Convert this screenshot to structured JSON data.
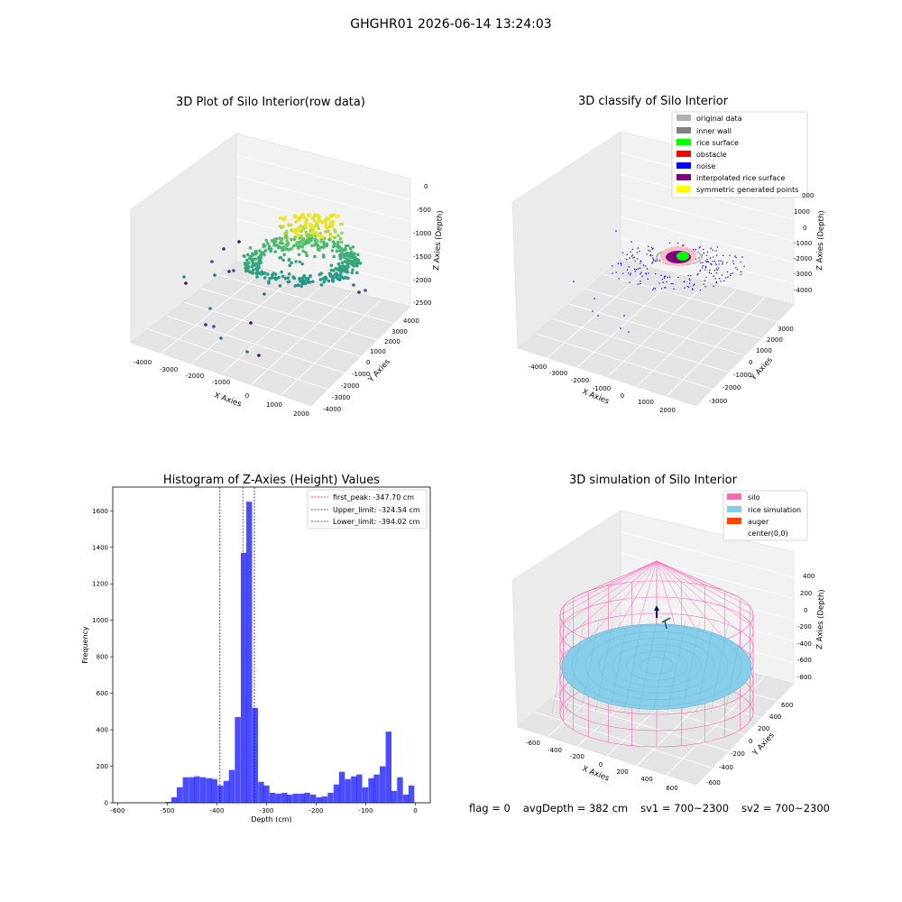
{
  "suptitle": "GHGHR01 2026-06-14 13:24:03",
  "footer": {
    "flag": "flag = 0",
    "avg": "avgDepth = 382 cm",
    "sv1": "sv1 = 700~2300",
    "sv2": "sv2 = 700~2300"
  },
  "chart_data": [
    {
      "type": "scatter",
      "title": "3D Plot of Silo Interior(row data)",
      "xlabel": "X Axies",
      "ylabel": "Y Axies",
      "zlabel": "Z Axies (Depth)",
      "x_ticks": [
        "-4000",
        "-3000",
        "-2000",
        "-1000",
        "0",
        "1000",
        "2000"
      ],
      "y_ticks": [
        "-4000",
        "-3000",
        "-2000",
        "-1000",
        "0",
        "1000",
        "2000",
        "3000",
        "4000"
      ],
      "z_ticks": [
        "0",
        "-500",
        "-1000",
        "-1500",
        "-2000",
        "-2500"
      ],
      "zlim": [
        -2500,
        0
      ],
      "colormap": "viridis",
      "note_points": "ring of points near z -1500 to -2000, peak near z -800"
    },
    {
      "type": "scatter",
      "title": "3D classify of Silo Interior",
      "zlabel": "Z Axies (Depth)",
      "xlabel": "X Axies",
      "ylabel": "Y Axies",
      "x_ticks": [
        "-4000",
        "-3000",
        "-2000",
        "-1000",
        "0",
        "1000",
        "2000"
      ],
      "y_ticks": [
        "-3000",
        "-2000",
        "-1000",
        "0",
        "1000",
        "2000",
        "3000"
      ],
      "z_ticks": [
        "2000",
        "1000",
        "0",
        "-1000",
        "-2000",
        "-3000",
        "-4000"
      ],
      "z_tick_partial": "000",
      "legend": [
        {
          "label": "original data",
          "color": "#b0b0b0"
        },
        {
          "label": "inner wall",
          "color": "#808080"
        },
        {
          "label": "rice surface",
          "color": "#00ff00"
        },
        {
          "label": "obstacle",
          "color": "#ff0000"
        },
        {
          "label": "noise",
          "color": "#0000ff"
        },
        {
          "label": "interpolated rice surface",
          "color": "#800080"
        },
        {
          "label": "symmetric generated points",
          "color": "#ffff00"
        }
      ]
    },
    {
      "type": "bar",
      "title": "Histogram of Z-Axies (Height) Values",
      "xlabel": "Depth (cm)",
      "ylabel": "Frequency",
      "xlim": [
        -610,
        30
      ],
      "ylim": [
        0,
        1730
      ],
      "x_ticks": [
        -600,
        -500,
        -400,
        -300,
        -200,
        -100,
        0
      ],
      "y_ticks": [
        0,
        200,
        400,
        600,
        800,
        1000,
        1200,
        1400,
        1600
      ],
      "bar_color": "#0000ff",
      "bin_width": 11.7,
      "bins": [
        {
          "x": -510,
          "v": 0
        },
        {
          "x": -498,
          "v": 5
        },
        {
          "x": -486,
          "v": 30
        },
        {
          "x": -475,
          "v": 85
        },
        {
          "x": -463,
          "v": 140
        },
        {
          "x": -451,
          "v": 140
        },
        {
          "x": -440,
          "v": 145
        },
        {
          "x": -428,
          "v": 140
        },
        {
          "x": -416,
          "v": 135
        },
        {
          "x": -405,
          "v": 130
        },
        {
          "x": -393,
          "v": 95
        },
        {
          "x": -381,
          "v": 120
        },
        {
          "x": -370,
          "v": 180
        },
        {
          "x": -358,
          "v": 470
        },
        {
          "x": -346,
          "v": 1370
        },
        {
          "x": -335,
          "v": 1650
        },
        {
          "x": -323,
          "v": 520
        },
        {
          "x": -311,
          "v": 115
        },
        {
          "x": -300,
          "v": 95
        },
        {
          "x": -288,
          "v": 55
        },
        {
          "x": -276,
          "v": 50
        },
        {
          "x": -264,
          "v": 55
        },
        {
          "x": -253,
          "v": 45
        },
        {
          "x": -241,
          "v": 50
        },
        {
          "x": -229,
          "v": 50
        },
        {
          "x": -218,
          "v": 55
        },
        {
          "x": -206,
          "v": 45
        },
        {
          "x": -194,
          "v": 30
        },
        {
          "x": -183,
          "v": 35
        },
        {
          "x": -171,
          "v": 55
        },
        {
          "x": -159,
          "v": 100
        },
        {
          "x": -148,
          "v": 170
        },
        {
          "x": -136,
          "v": 130
        },
        {
          "x": -124,
          "v": 145
        },
        {
          "x": -113,
          "v": 155
        },
        {
          "x": -101,
          "v": 85
        },
        {
          "x": -89,
          "v": 135
        },
        {
          "x": -78,
          "v": 155
        },
        {
          "x": -66,
          "v": 200
        },
        {
          "x": -54,
          "v": 390
        },
        {
          "x": -43,
          "v": 65
        },
        {
          "x": -31,
          "v": 140
        },
        {
          "x": -19,
          "v": 45
        },
        {
          "x": -8,
          "v": 95
        }
      ],
      "vlines": [
        {
          "label": "first_peak: -347.70 cm",
          "value": -347.7,
          "color": "#ff0000"
        },
        {
          "label": "Upper_limit: -324.54 cm",
          "value": -324.54,
          "color": "#0000ff"
        },
        {
          "label": "Lower_limit: -394.02 cm",
          "value": -394.02,
          "color": "#0000ff"
        }
      ],
      "legend_position": "top-right"
    },
    {
      "type": "scatter",
      "title": "3D simulation of Silo Interior",
      "xlabel": "X Axies",
      "ylabel": "Y Axies",
      "zlabel": "Z Axies (Depth)",
      "x_ticks": [
        "-600",
        "-400",
        "-200",
        "0",
        "200",
        "400",
        "600"
      ],
      "y_ticks": [
        "-600",
        "-400",
        "-200",
        "0",
        "200",
        "400",
        "600"
      ],
      "z_ticks": [
        "400",
        "200",
        "0",
        "-200",
        "-400",
        "-600",
        "-800"
      ],
      "legend": [
        {
          "label": "silo",
          "color": "#ff69b4"
        },
        {
          "label": "rice simulation",
          "color": "#87ceeb"
        },
        {
          "label": "auger",
          "color": "#ff4500"
        },
        {
          "label": "center(0,0)",
          "color": ""
        }
      ]
    }
  ]
}
